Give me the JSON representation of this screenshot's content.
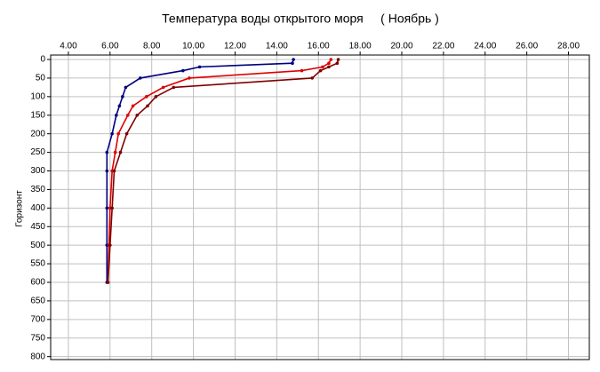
{
  "chart_data": {
    "type": "line",
    "title": "Температура воды открытого моря     ( Ноябрь )",
    "y_label": "Горизонт",
    "y": [
      0,
      10,
      20,
      30,
      50,
      75,
      100,
      125,
      150,
      200,
      250,
      300,
      400,
      500,
      600
    ],
    "series": [
      {
        "color": "#000080",
        "values": [
          14.8,
          14.75,
          10.3,
          9.5,
          7.45,
          6.75,
          6.6,
          6.45,
          6.3,
          6.1,
          5.85,
          5.85,
          5.85,
          5.85,
          5.85
        ]
      },
      {
        "color": "#e00000",
        "values": [
          16.6,
          16.5,
          16.2,
          15.2,
          9.8,
          8.55,
          7.75,
          7.1,
          6.85,
          6.4,
          6.25,
          6.1,
          6.0,
          5.95,
          5.9
        ]
      },
      {
        "color": "#800000",
        "values": [
          16.95,
          16.9,
          16.5,
          16.1,
          15.7,
          9.05,
          8.2,
          7.8,
          7.3,
          6.8,
          6.5,
          6.2,
          6.1,
          6.0,
          5.9
        ]
      }
    ],
    "xlim": [
      3.15,
      29
    ],
    "xticks": [
      {
        "value": 4,
        "label": "4.00"
      },
      {
        "value": 6,
        "label": "6.00"
      },
      {
        "value": 8,
        "label": "8.00"
      },
      {
        "value": 10,
        "label": "10.00"
      },
      {
        "value": 12,
        "label": "12.00"
      },
      {
        "value": 14,
        "label": "14.00"
      },
      {
        "value": 16,
        "label": "16.00"
      },
      {
        "value": 18,
        "label": "18.00"
      },
      {
        "value": 20,
        "label": "20.00"
      },
      {
        "value": 22,
        "label": "22.00"
      },
      {
        "value": 24,
        "label": "24.00"
      },
      {
        "value": 26,
        "label": "26.00"
      },
      {
        "value": 28,
        "label": "28.00"
      }
    ],
    "ylim": [
      -12,
      808
    ],
    "yticks": [
      0,
      50,
      100,
      150,
      200,
      250,
      300,
      350,
      400,
      450,
      500,
      550,
      600,
      650,
      700,
      750,
      800
    ],
    "y_inverted": true,
    "grid": true
  }
}
